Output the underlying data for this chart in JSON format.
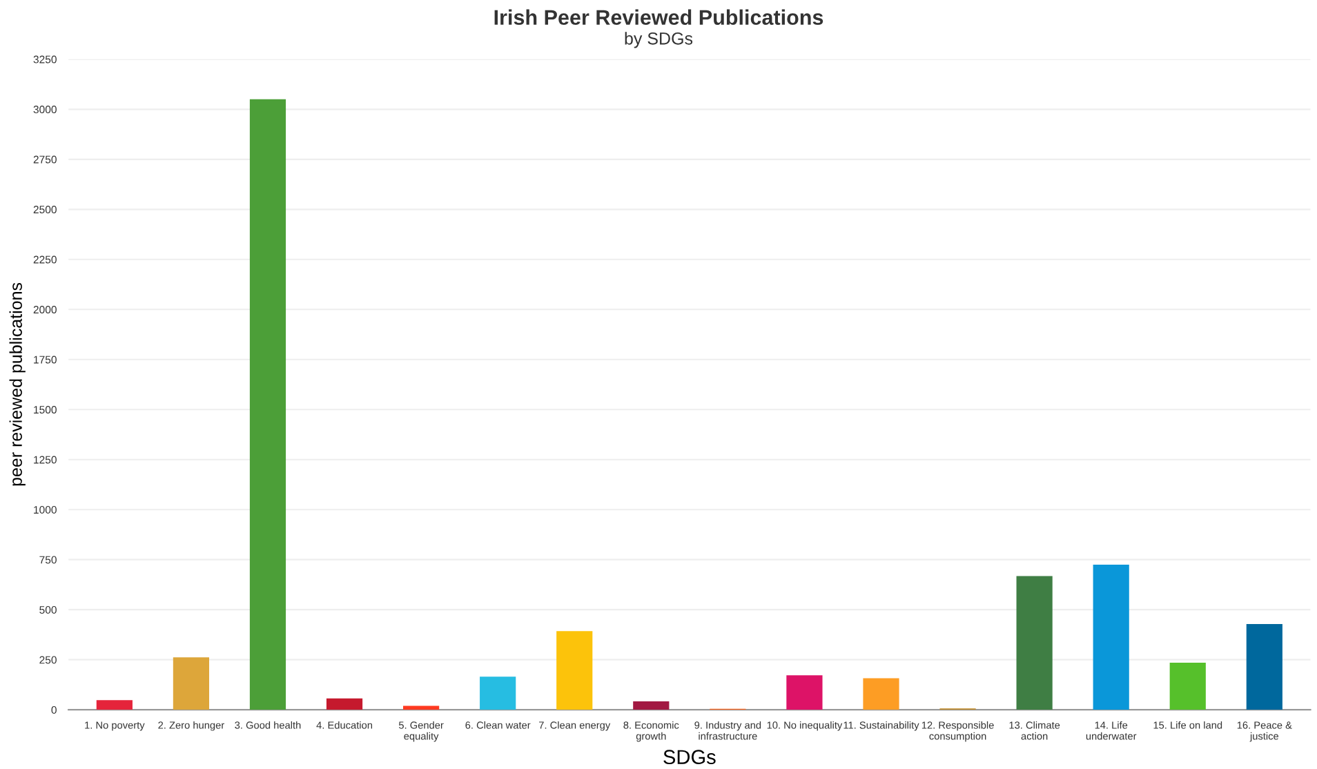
{
  "chart_data": {
    "type": "bar",
    "title": "Irish Peer Reviewed Publications",
    "subtitle": "by SDGs",
    "xlabel": "SDGs",
    "ylabel": "peer reviewed publications",
    "categories": [
      "1. No poverty",
      "2. Zero hunger",
      "3. Good health",
      "4. Education",
      "5. Gender\nequality",
      "6. Clean water",
      "7. Clean energy",
      "8. Economic\ngrowth",
      "9. Industry and\ninfrastructure",
      "10. No inequality",
      "11. Sustainability",
      "12. Responsible\nconsumption",
      "13. Climate\naction",
      "14. Life\nunderwater",
      "15. Life on land",
      "16. Peace &\njustice"
    ],
    "values": [
      48,
      262,
      3050,
      57,
      20,
      165,
      393,
      42,
      5,
      172,
      158,
      7,
      668,
      725,
      235,
      428
    ],
    "colors": [
      "#e5243b",
      "#dda63a",
      "#4c9f38",
      "#c5192d",
      "#ff3a21",
      "#26bde2",
      "#fcc30b",
      "#a21942",
      "#fd6925",
      "#dd1367",
      "#fd9d24",
      "#bf8b2e",
      "#3f7e44",
      "#0a97d9",
      "#56c02b",
      "#00689d"
    ],
    "ylim": [
      0,
      3250
    ],
    "yticks": [
      0,
      250,
      500,
      750,
      1000,
      1250,
      1500,
      1750,
      2000,
      2250,
      2500,
      2750,
      3000,
      3250
    ],
    "grid": "y",
    "legend": false
  }
}
